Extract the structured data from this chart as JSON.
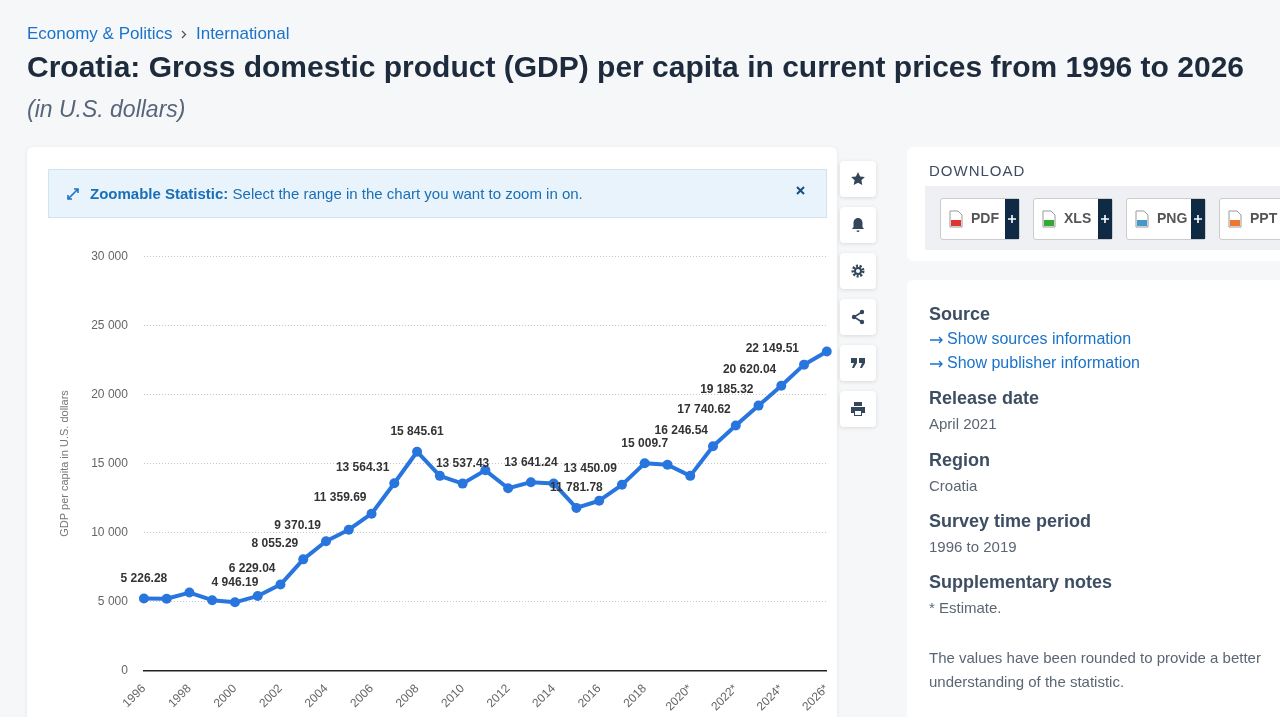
{
  "chart_data": {
    "type": "line",
    "title": "Croatia: Gross domestic product (GDP) per capita in current prices from 1996 to 2026",
    "subtitle": "(in U.S. dollars)",
    "ylabel": "GDP per capita in U.S. dollars",
    "categories": [
      "1996",
      null,
      "1998",
      null,
      "2000",
      null,
      "2002",
      null,
      "2004",
      null,
      "2006",
      null,
      "2008",
      null,
      "2010",
      null,
      "2012",
      null,
      "2014",
      null,
      "2016",
      null,
      "2018",
      null,
      "2020*",
      null,
      "2022*",
      null,
      "2024*",
      null,
      "2026*"
    ],
    "series": [
      {
        "color": "#2876dd",
        "values": [
          5226.28,
          5200,
          5650,
          5100,
          4946.19,
          5400,
          6229.04,
          8055.29,
          9370.19,
          10200,
          11359.69,
          13564.31,
          15845.61,
          14100,
          13537.43,
          14500,
          13200,
          13641.24,
          13550,
          11781.78,
          12300,
          13450.09,
          15009.7,
          14900,
          14100,
          16246.54,
          17740.62,
          19185.32,
          20620.04,
          22149.51,
          23100
        ],
        "value_labels": [
          "5 226.28",
          null,
          null,
          null,
          "4 946.19",
          null,
          "6 229.04",
          "8 055.29",
          "9 370.19",
          null,
          "11 359.69",
          "13 564.31",
          "15 845.61",
          null,
          "13 537.43",
          null,
          null,
          "13 641.24",
          null,
          "11 781.78",
          null,
          "13 450.09",
          "15 009.7",
          null,
          null,
          "16 246.54",
          "17 740.62",
          "19 185.32",
          "20 620.04",
          "22 149.51",
          null
        ]
      }
    ],
    "ylim": [
      0,
      30000
    ],
    "yticks": [
      0,
      {
        "value": 5000,
        "label": "5 000"
      },
      {
        "value": 10000,
        "label": "10 000"
      },
      {
        "value": 15000,
        "label": "15 000"
      },
      {
        "value": 20000,
        "label": "20 000"
      },
      {
        "value": 25000,
        "label": "25 000"
      },
      {
        "value": 30000,
        "label": "30 000"
      }
    ],
    "grid": "y",
    "legend": false,
    "marker": "circle",
    "line_style": "solid",
    "annotations": [
      "Economy & Politics",
      "International",
      "Zoomable Statistic:",
      "Select the range in the chart you want to zoom in on.",
      "DOWNLOAD",
      "PDF",
      "XLS",
      "PNG",
      "PPT",
      "Source",
      "Show sources information",
      "Show publisher information",
      "Release date",
      "April 2021",
      "Region",
      "Croatia",
      "Survey time period",
      "1996 to 2019",
      "Supplementary notes",
      "* Estimate.",
      "The values have been rounded to provide a better understanding of the statistic."
    ]
  }
}
